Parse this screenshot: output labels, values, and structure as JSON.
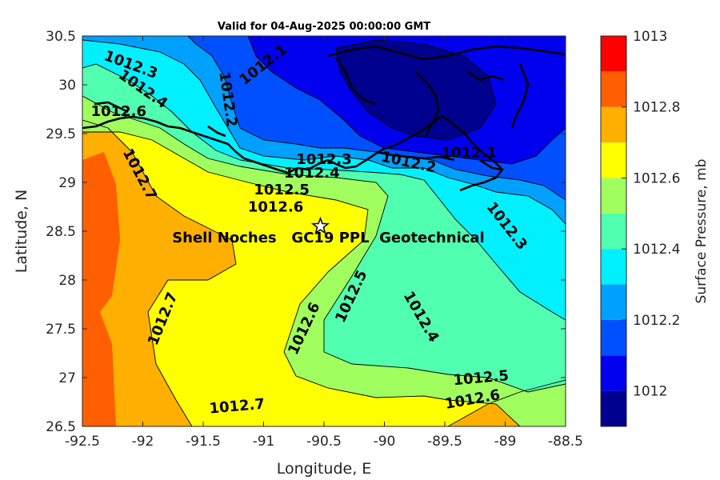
{
  "chart_data": {
    "type": "heatmap",
    "title": "Valid for 04-Aug-2025 00:00:00 GMT",
    "xlabel": "Longitude, E",
    "ylabel": "Latitude, N",
    "xlim": [
      -92.5,
      -88.5
    ],
    "ylim": [
      26.5,
      30.5
    ],
    "x_ticks": [
      "-92.5",
      "-92",
      "-91.5",
      "-91",
      "-90.5",
      "-90",
      "-89.5",
      "-89",
      "-88.5"
    ],
    "y_ticks": [
      "30.5",
      "30",
      "29.5",
      "29",
      "28.5",
      "28",
      "27.5",
      "27",
      "26.5"
    ],
    "colorbar": {
      "label": "Surface Pressure, mb",
      "range": [
        1011.9,
        1013.0
      ],
      "tick_labels": [
        "1013",
        "1012.8",
        "1012.6",
        "1012.4",
        "1012.2",
        "1012"
      ],
      "levels": [
        1011.9,
        1012.0,
        1012.1,
        1012.2,
        1012.3,
        1012.4,
        1012.5,
        1012.6,
        1012.7,
        1012.8,
        1012.9,
        1013.0
      ],
      "colors": [
        "#00008f",
        "#0000ef",
        "#0050ff",
        "#00a0ff",
        "#00f0ff",
        "#50ffaf",
        "#a0ff5f",
        "#ffff00",
        "#ffaf00",
        "#ff5f00",
        "#ff0000",
        "#af0000"
      ]
    },
    "contour_labels": [
      {
        "text": "1012.3",
        "lon": -92.1,
        "lat": 30.2,
        "angle": 20
      },
      {
        "text": "1012.4",
        "lon": -92.0,
        "lat": 29.95,
        "angle": 35
      },
      {
        "text": "1012.6",
        "lon": -92.2,
        "lat": 29.72,
        "angle": 0
      },
      {
        "text": "1012.1",
        "lon": -91.0,
        "lat": 30.2,
        "angle": -38
      },
      {
        "text": "1012.2",
        "lon": -91.3,
        "lat": 29.85,
        "angle": 82
      },
      {
        "text": "1012.7",
        "lon": -92.03,
        "lat": 29.08,
        "angle": 62
      },
      {
        "text": "1012.3",
        "lon": -90.5,
        "lat": 29.23,
        "angle": 0
      },
      {
        "text": "1012.4",
        "lon": -90.6,
        "lat": 29.09,
        "angle": 0
      },
      {
        "text": "1012.5",
        "lon": -90.85,
        "lat": 28.92,
        "angle": 0
      },
      {
        "text": "1012.6",
        "lon": -90.9,
        "lat": 28.74,
        "angle": 0
      },
      {
        "text": "1012.1",
        "lon": -89.3,
        "lat": 29.3,
        "angle": 0
      },
      {
        "text": "1012.2",
        "lon": -89.8,
        "lat": 29.2,
        "angle": 12
      },
      {
        "text": "1012.3",
        "lon": -88.99,
        "lat": 28.55,
        "angle": 52
      },
      {
        "text": "1012.7",
        "lon": -91.83,
        "lat": 27.6,
        "angle": -68
      },
      {
        "text": "1012.6",
        "lon": -90.66,
        "lat": 27.5,
        "angle": -65
      },
      {
        "text": "1012.5",
        "lon": -90.27,
        "lat": 27.83,
        "angle": -65
      },
      {
        "text": "1012.4",
        "lon": -89.7,
        "lat": 27.62,
        "angle": 60
      },
      {
        "text": "1012.5",
        "lon": -89.2,
        "lat": 26.99,
        "angle": -5
      },
      {
        "text": "1012.6",
        "lon": -89.27,
        "lat": 26.77,
        "angle": -10
      },
      {
        "text": "1012.7",
        "lon": -91.22,
        "lat": 26.7,
        "angle": -5
      }
    ],
    "site": {
      "name": "Shell Noches   GC19 PPL  Geotechnical",
      "lon": -90.53,
      "lat": 28.55
    },
    "grid": false
  }
}
